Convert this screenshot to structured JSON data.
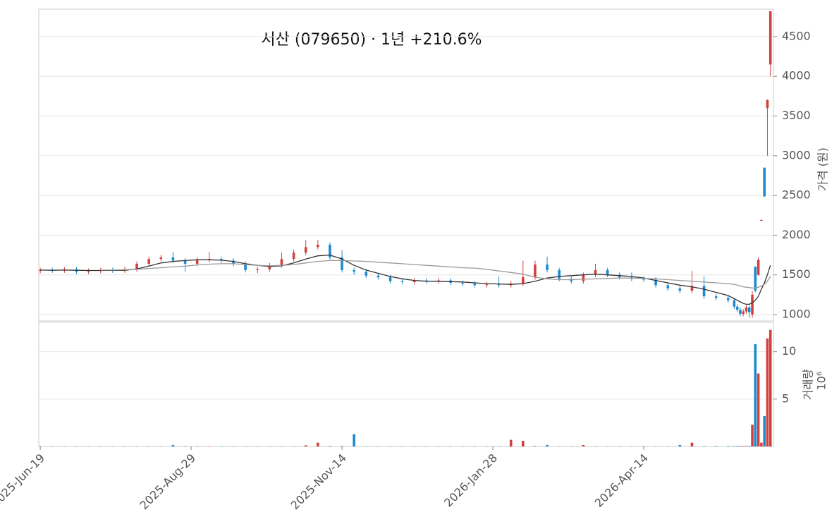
{
  "chart_data": {
    "type": "candlestick",
    "title": "서산 (079650) · 1년 +210.6%",
    "x": [
      0,
      4,
      8,
      12,
      16,
      20,
      24,
      28,
      32,
      36,
      40,
      44,
      48,
      52,
      56,
      60,
      64,
      68,
      72,
      76,
      80,
      84,
      88,
      92,
      96,
      100,
      104,
      108,
      112,
      116,
      120,
      124,
      128,
      132,
      136,
      140,
      144,
      148,
      152,
      156,
      160,
      164,
      168,
      172,
      176,
      180,
      184,
      188,
      192,
      196,
      200,
      204,
      208,
      212,
      216,
      220,
      224,
      228,
      230,
      231,
      232,
      233,
      234,
      235,
      236,
      237,
      238,
      239,
      240,
      241,
      242
    ],
    "open": [
      1550,
      1560,
      1555,
      1570,
      1540,
      1550,
      1560,
      1555,
      1570,
      1640,
      1700,
      1720,
      1680,
      1640,
      1690,
      1700,
      1680,
      1640,
      1560,
      1570,
      1620,
      1700,
      1780,
      1850,
      1880,
      1720,
      1560,
      1540,
      1490,
      1470,
      1420,
      1410,
      1430,
      1420,
      1430,
      1400,
      1390,
      1370,
      1380,
      1370,
      1390,
      1470,
      1630,
      1560,
      1450,
      1420,
      1500,
      1560,
      1500,
      1470,
      1450,
      1440,
      1370,
      1330,
      1300,
      1360,
      1230,
      1210,
      1180,
      1100,
      1060,
      1010,
      1040,
      1090,
      1000,
      1600,
      1500,
      2190,
      2850,
      3600,
      4150
    ],
    "high": [
      1590,
      1590,
      1600,
      1600,
      1580,
      1590,
      1590,
      1600,
      1670,
      1730,
      1750,
      1790,
      1710,
      1720,
      1790,
      1730,
      1710,
      1670,
      1600,
      1650,
      1780,
      1820,
      1940,
      1940,
      1910,
      1810,
      1590,
      1570,
      1520,
      1500,
      1450,
      1460,
      1460,
      1460,
      1460,
      1430,
      1420,
      1410,
      1480,
      1420,
      1680,
      1680,
      1730,
      1590,
      1480,
      1530,
      1640,
      1590,
      1530,
      1530,
      1480,
      1470,
      1400,
      1360,
      1550,
      1480,
      1260,
      1240,
      1210,
      1130,
      1090,
      1070,
      1120,
      1120,
      1300,
      1610,
      1720,
      2200,
      2850,
      3710,
      4820
    ],
    "low": [
      1520,
      1525,
      1525,
      1510,
      1510,
      1520,
      1525,
      1525,
      1540,
      1610,
      1670,
      1650,
      1540,
      1610,
      1660,
      1650,
      1610,
      1530,
      1520,
      1540,
      1590,
      1670,
      1750,
      1820,
      1690,
      1530,
      1500,
      1460,
      1440,
      1390,
      1380,
      1380,
      1390,
      1390,
      1370,
      1360,
      1340,
      1340,
      1340,
      1340,
      1360,
      1440,
      1530,
      1420,
      1390,
      1390,
      1470,
      1470,
      1440,
      1420,
      1410,
      1340,
      1300,
      1270,
      1270,
      1200,
      1180,
      1150,
      1070,
      1030,
      980,
      980,
      1010,
      960,
      960,
      1280,
      1490,
      2180,
      2480,
      3000,
      4000
    ],
    "close": [
      1560,
      1555,
      1570,
      1540,
      1550,
      1560,
      1555,
      1570,
      1640,
      1700,
      1720,
      1680,
      1640,
      1690,
      1700,
      1680,
      1640,
      1560,
      1570,
      1620,
      1700,
      1780,
      1850,
      1880,
      1720,
      1560,
      1540,
      1490,
      1470,
      1420,
      1410,
      1430,
      1420,
      1430,
      1400,
      1390,
      1370,
      1380,
      1370,
      1390,
      1470,
      1630,
      1560,
      1450,
      1420,
      1500,
      1560,
      1500,
      1470,
      1450,
      1440,
      1370,
      1330,
      1300,
      1360,
      1230,
      1210,
      1180,
      1100,
      1060,
      1010,
      1040,
      1090,
      1030,
      1250,
      1300,
      1690,
      2190,
      2490,
      3700,
      4820
    ],
    "volume": [
      0.03,
      0.03,
      0.03,
      0.03,
      0.03,
      0.03,
      0.03,
      0.03,
      0.03,
      0.03,
      0.03,
      0.15,
      0.03,
      0.03,
      0.03,
      0.03,
      0.03,
      0.03,
      0.03,
      0.03,
      0.03,
      0.03,
      0.12,
      0.4,
      0.05,
      0.05,
      1.3,
      0.03,
      0.03,
      0.03,
      0.03,
      0.03,
      0.03,
      0.03,
      0.03,
      0.03,
      0.03,
      0.03,
      0.03,
      0.7,
      0.6,
      0.05,
      0.15,
      0.03,
      0.03,
      0.15,
      0.03,
      0.03,
      0.03,
      0.03,
      0.03,
      0.03,
      0.03,
      0.15,
      0.4,
      0.05,
      0.05,
      0.05,
      0.05,
      0.05,
      0.05,
      0.05,
      0.05,
      0.05,
      2.3,
      10.8,
      7.7,
      0.4,
      3.2,
      11.4,
      12.3
    ],
    "lines": [
      {
        "color": "#333333",
        "values": [
          1560,
          1558,
          1560,
          1558,
          1555,
          1555,
          1556,
          1558,
          1575,
          1610,
          1650,
          1670,
          1680,
          1690,
          1690,
          1685,
          1670,
          1640,
          1620,
          1605,
          1615,
          1650,
          1700,
          1740,
          1750,
          1700,
          1620,
          1560,
          1520,
          1480,
          1450,
          1430,
          1420,
          1420,
          1415,
          1410,
          1400,
          1390,
          1385,
          1380,
          1390,
          1420,
          1460,
          1480,
          1490,
          1500,
          1510,
          1500,
          1490,
          1480,
          1460,
          1430,
          1400,
          1370,
          1350,
          1320,
          1280,
          1240,
          1200,
          1180,
          1160,
          1140,
          1130,
          1130,
          1150,
          1180,
          1230,
          1320,
          1400,
          1500,
          1620
        ]
      },
      {
        "color": "#999999",
        "values": [
          null,
          null,
          null,
          null,
          null,
          1560,
          1560,
          1565,
          1570,
          1580,
          1590,
          1600,
          1610,
          1625,
          1635,
          1640,
          1640,
          1630,
          1620,
          1615,
          1620,
          1630,
          1650,
          1670,
          1680,
          1680,
          1675,
          1670,
          1660,
          1650,
          1640,
          1630,
          1620,
          1610,
          1600,
          1590,
          1585,
          1570,
          1550,
          1530,
          1510,
          1470,
          1450,
          1440,
          1440,
          1445,
          1450,
          1455,
          1460,
          1460,
          1455,
          1450,
          1440,
          1430,
          1420,
          1410,
          1400,
          1390,
          1380,
          1370,
          1360,
          1350,
          1345,
          1340,
          1335,
          1335,
          1345,
          1360,
          1380,
          1420,
          1480
        ]
      }
    ],
    "up_color": "#d0413f",
    "down_color": "#1d8ad0",
    "xlim": [
      -0.5,
      243
    ],
    "xticks": [
      {
        "value": 0,
        "label": "2025-Jun-19"
      },
      {
        "value": 50,
        "label": "2025-Aug-29"
      },
      {
        "value": 100,
        "label": "2025-Nov-14"
      },
      {
        "value": 150,
        "label": "2026-Jan-28"
      },
      {
        "value": 200,
        "label": "2026-Apr-14"
      }
    ],
    "ylim": [
      920,
      4846
    ],
    "yticks": [
      1000,
      1500,
      2000,
      2500,
      3000,
      3500,
      4000,
      4500
    ],
    "y_label": "가격 (원)",
    "volume_ylim": [
      0,
      13.1
    ],
    "volume_yticks": [
      5,
      10
    ],
    "volume_label": "거래량",
    "volume_multiplier": "10⁶",
    "grid": true
  }
}
